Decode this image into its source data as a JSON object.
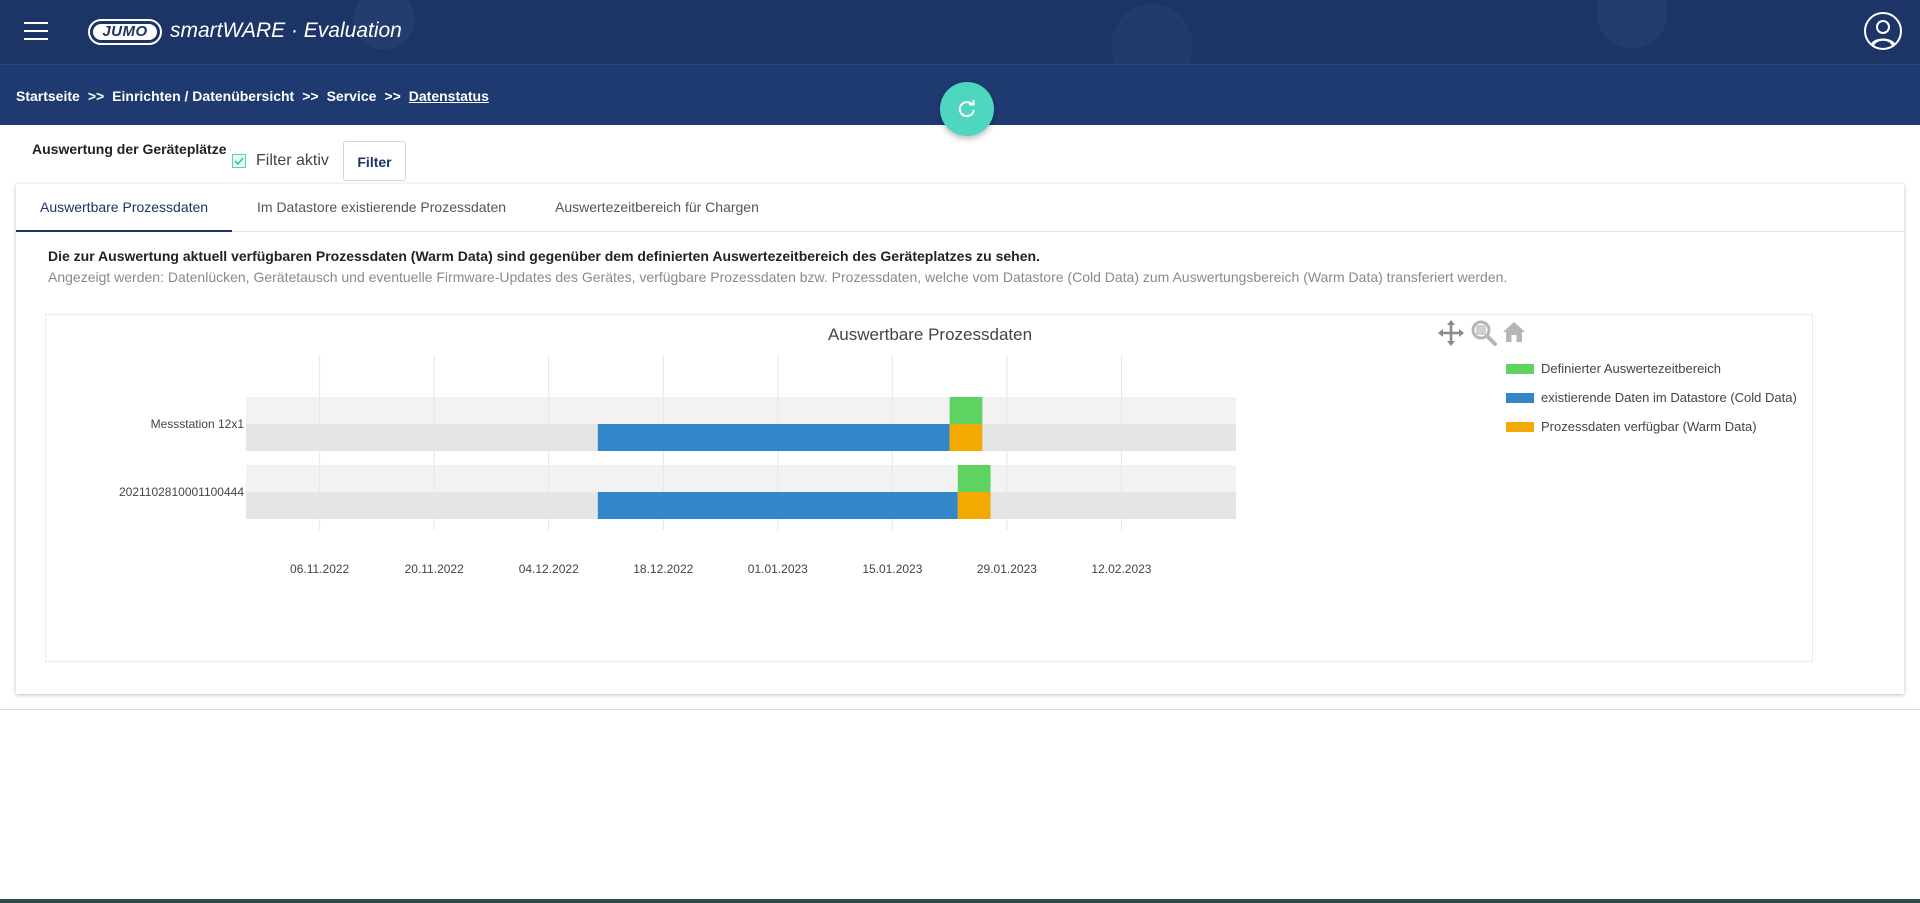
{
  "app": {
    "logo_text": "JUMO",
    "title": "smartWARE · Evaluation"
  },
  "icons": {
    "menu": "hamburger-menu-icon",
    "user": "user-account-icon",
    "refresh": "refresh-icon",
    "check": "checkmark-icon",
    "pan": "pan-arrows-icon",
    "zoom": "zoom-icon",
    "home": "home-icon"
  },
  "breadcrumb": {
    "items": [
      "Startseite",
      "Einrichten / Datenübersicht",
      "Service",
      "Datenstatus"
    ],
    "separator": ">>"
  },
  "filter": {
    "section_label": "Auswertung der Geräteplätze",
    "checkbox_label": "Filter aktiv",
    "checked": true,
    "button_label": "Filter"
  },
  "tabs": [
    {
      "label": "Auswertbare Prozessdaten",
      "active": true
    },
    {
      "label": "Im Datastore existierende Prozessdaten",
      "active": false
    },
    {
      "label": "Auswertezeitbereich für Chargen",
      "active": false
    }
  ],
  "info": {
    "title": "Die zur Auswertung aktuell verfügbaren Prozessdaten (Warm Data) sind gegenüber dem definierten Auswertezeitbereich des Geräteplatzes zu sehen.",
    "subtitle": "Angezeigt werden: Datenlücken, Gerätetausch und eventuelle Firmware-Updates des Gerätes, verfügbare Prozessdaten bzw. Prozessdaten, welche vom Datastore (Cold Data) zum Auswertungsbereich (Warm Data) transferiert werden."
  },
  "colors": {
    "header_bg": "#1c3566",
    "breadcrumb_bg": "#1e3a70",
    "accent": "#4fd6be",
    "defined": "#5fd35f",
    "cold": "#3287c9",
    "warm": "#f2a900"
  },
  "chart_data": {
    "type": "timeline",
    "title": "Auswertbare Prozessdaten",
    "x_ticks": [
      "06.11.2022",
      "20.11.2022",
      "04.12.2022",
      "18.12.2022",
      "01.01.2023",
      "15.01.2023",
      "29.01.2023",
      "12.02.2023"
    ],
    "x_range": [
      "2022-10-28",
      "2023-02-26"
    ],
    "categories": [
      "Messstation 12x1",
      "2021102810001100444"
    ],
    "series": [
      {
        "name": "Definierter Auswertezeitbereich",
        "color": "#5fd35f",
        "intervals": [
          {
            "category": "Messstation 12x1",
            "start": "2023-01-22",
            "end": "2023-01-26"
          },
          {
            "category": "2021102810001100444",
            "start": "2023-01-23",
            "end": "2023-01-27"
          }
        ]
      },
      {
        "name": "existierende Daten im Datastore (Cold Data)",
        "color": "#3287c9",
        "intervals": [
          {
            "category": "Messstation 12x1",
            "start": "2022-12-10",
            "end": "2023-01-22"
          },
          {
            "category": "2021102810001100444",
            "start": "2022-12-10",
            "end": "2023-01-23"
          }
        ]
      },
      {
        "name": "Prozessdaten verfügbar (Warm Data)",
        "color": "#f2a900",
        "intervals": [
          {
            "category": "Messstation 12x1",
            "start": "2023-01-22",
            "end": "2023-01-26"
          },
          {
            "category": "2021102810001100444",
            "start": "2023-01-23",
            "end": "2023-01-27"
          }
        ]
      }
    ],
    "legend_position": "right",
    "grid": true
  }
}
